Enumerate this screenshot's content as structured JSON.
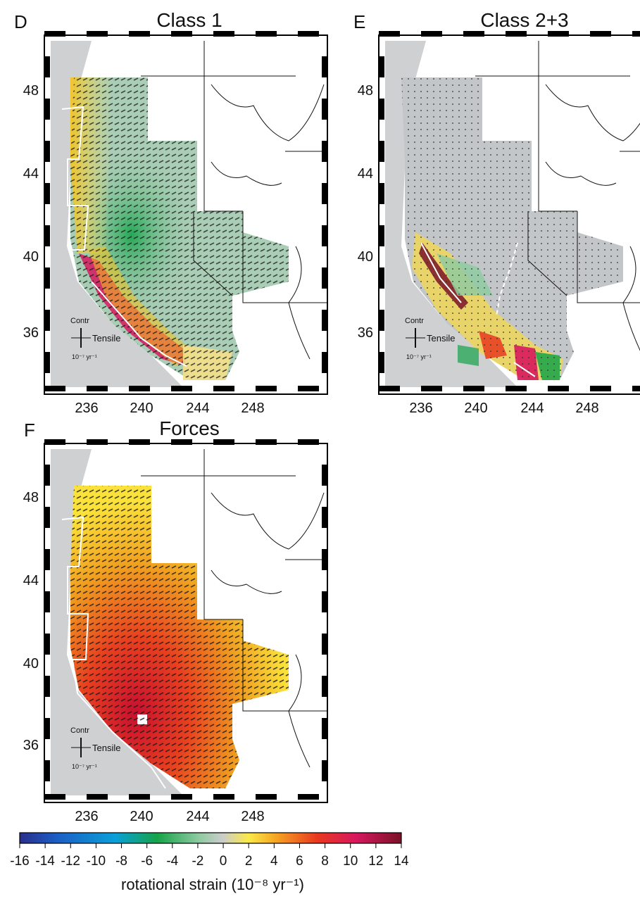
{
  "panels": [
    {
      "letter": "D",
      "title": "Class 1",
      "lat_ticks": [
        "48",
        "44",
        "40",
        "36"
      ],
      "lon_ticks": [
        "236",
        "240",
        "244",
        "248"
      ],
      "legend": {
        "contr": "Contr",
        "tensile": "Tensile",
        "scale": "10⁻⁷ yr⁻¹"
      }
    },
    {
      "letter": "E",
      "title": "Class 2+3",
      "lat_ticks": [
        "48",
        "44",
        "40",
        "36"
      ],
      "lon_ticks": [
        "236",
        "240",
        "244",
        "248"
      ],
      "legend": {
        "contr": "Contr",
        "tensile": "Tensile",
        "scale": "10⁻⁷ yr⁻¹"
      }
    },
    {
      "letter": "F",
      "title": "Forces",
      "lat_ticks": [
        "48",
        "44",
        "40",
        "36"
      ],
      "lon_ticks": [
        "236",
        "240",
        "244",
        "248"
      ],
      "legend": {
        "contr": "Contr",
        "tensile": "Tensile",
        "scale": "10⁻⁷ yr⁻¹"
      }
    }
  ],
  "colorbar": {
    "ticks": [
      "-16",
      "-14",
      "-12",
      "-10",
      "-8",
      "-6",
      "-4",
      "-2",
      "0",
      "2",
      "4",
      "6",
      "8",
      "10",
      "12",
      "14"
    ],
    "label": "rotational strain (10⁻⁸ yr⁻¹)",
    "colors": [
      "#2a2f8c",
      "#1c5fc4",
      "#0aa0d8",
      "#16a34a",
      "#8fcaa0",
      "#c9cccc",
      "#fbe94a",
      "#f6a623",
      "#e8381f",
      "#d8185e",
      "#7a1228"
    ]
  }
}
